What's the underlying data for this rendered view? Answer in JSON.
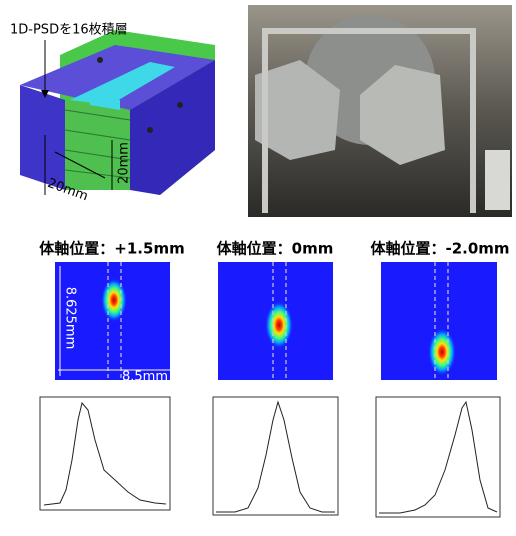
{
  "diagram": {
    "caption": "1D-PSDを16枚積層",
    "width_label": "20mm",
    "height_label": "20mm"
  },
  "panels": [
    {
      "title": "体軸位置：+1.5mm",
      "height_label": "8.625mm",
      "width_label": "8.5mm"
    },
    {
      "title": "体軸位置：0mm"
    },
    {
      "title": "体軸位置：-2.0mm"
    }
  ]
}
